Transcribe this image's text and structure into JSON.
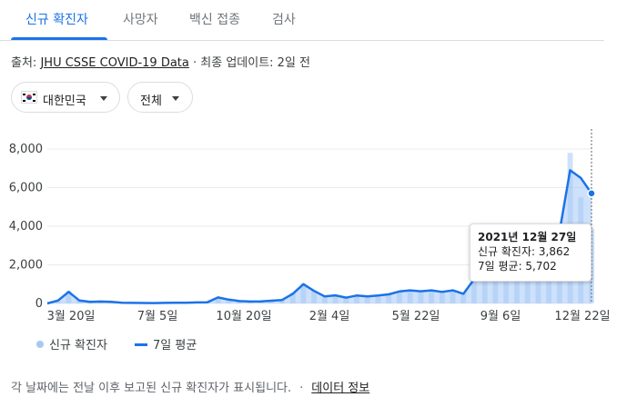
{
  "tabs": [
    {
      "label": "신규 확진자",
      "active": true
    },
    {
      "label": "사망자",
      "active": false
    },
    {
      "label": "백신 접종",
      "active": false
    },
    {
      "label": "검사",
      "active": false
    }
  ],
  "source": {
    "prefix": "출처:",
    "link": "JHU CSSE COVID-19 Data",
    "suffix": "· 최종 업데이트: 2일 전"
  },
  "filters": {
    "country": {
      "label": "대한민국",
      "flag": "south-korea-flag-icon"
    },
    "scope": {
      "label": "전체"
    }
  },
  "legend": {
    "cases_label": "신규 확진자",
    "avg_label": "7일 평균"
  },
  "tooltip": {
    "date": "2021년 12월 27일",
    "cases_line": "신규 확진자: 3,862",
    "avg_line": "7일 평균: 5,702"
  },
  "footer": {
    "note": "각 날짜에는 전날 이후 보고된 신규 확진자가 표시됩니다.",
    "sep": "·",
    "link": "데이터 정보"
  },
  "colors": {
    "accent": "#1a73e8",
    "bars": "#a6c8f5",
    "grid": "#ebebeb"
  },
  "chart_data": {
    "type": "area",
    "ylim": [
      0,
      8000
    ],
    "yticks": [
      {
        "value": 8000,
        "label": "8,000"
      },
      {
        "value": 6000,
        "label": "6,000"
      },
      {
        "value": 4000,
        "label": "4,000"
      },
      {
        "value": 2000,
        "label": "2,000"
      },
      {
        "value": 0,
        "label": "0"
      }
    ],
    "xticks": [
      "3월 20일",
      "7월 5일",
      "10월 20일",
      "2월 4일",
      "5월 22일",
      "9월 6일",
      "12월 22일"
    ],
    "series": [
      {
        "name": "신규 확진자",
        "type": "bar",
        "values": [
          0,
          180,
          650,
          140,
          80,
          100,
          80,
          40,
          30,
          25,
          20,
          30,
          35,
          40,
          50,
          60,
          330,
          200,
          120,
          100,
          110,
          140,
          180,
          560,
          1050,
          650,
          380,
          430,
          300,
          420,
          370,
          420,
          480,
          640,
          700,
          640,
          700,
          600,
          700,
          500,
          1300,
          1900,
          1750,
          1900,
          2000,
          2500,
          2600,
          3000,
          3900,
          7800,
          5500,
          3862
        ]
      },
      {
        "name": "7일 평균",
        "type": "line",
        "values": [
          0,
          150,
          600,
          150,
          80,
          100,
          80,
          40,
          30,
          25,
          20,
          30,
          35,
          40,
          50,
          60,
          310,
          200,
          120,
          100,
          110,
          140,
          180,
          500,
          1000,
          650,
          360,
          420,
          300,
          410,
          360,
          410,
          470,
          620,
          680,
          630,
          680,
          600,
          680,
          500,
          1250,
          1700,
          1650,
          1800,
          1900,
          2300,
          2500,
          2900,
          3700,
          6900,
          6500,
          5702
        ]
      }
    ]
  }
}
